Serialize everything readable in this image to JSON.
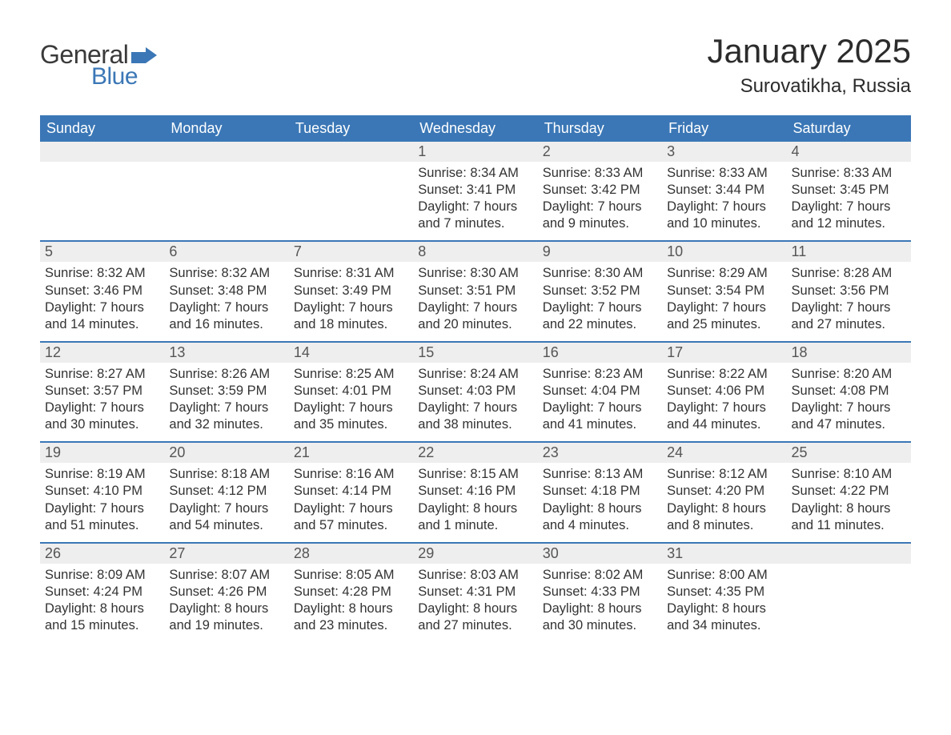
{
  "logo": {
    "word1": "General",
    "word2": "Blue"
  },
  "title": "January 2025",
  "location": "Surovatikha, Russia",
  "colors": {
    "brand_blue": "#3b77b6",
    "header_text": "#ffffff",
    "daynum_bg": "#eeeeee",
    "body_text": "#333333",
    "page_bg": "#ffffff"
  },
  "weekday_headers": [
    "Sunday",
    "Monday",
    "Tuesday",
    "Wednesday",
    "Thursday",
    "Friday",
    "Saturday"
  ],
  "weeks": [
    [
      null,
      null,
      null,
      {
        "n": "1",
        "sunrise": "Sunrise: 8:34 AM",
        "sunset": "Sunset: 3:41 PM",
        "d1": "Daylight: 7 hours",
        "d2": "and 7 minutes."
      },
      {
        "n": "2",
        "sunrise": "Sunrise: 8:33 AM",
        "sunset": "Sunset: 3:42 PM",
        "d1": "Daylight: 7 hours",
        "d2": "and 9 minutes."
      },
      {
        "n": "3",
        "sunrise": "Sunrise: 8:33 AM",
        "sunset": "Sunset: 3:44 PM",
        "d1": "Daylight: 7 hours",
        "d2": "and 10 minutes."
      },
      {
        "n": "4",
        "sunrise": "Sunrise: 8:33 AM",
        "sunset": "Sunset: 3:45 PM",
        "d1": "Daylight: 7 hours",
        "d2": "and 12 minutes."
      }
    ],
    [
      {
        "n": "5",
        "sunrise": "Sunrise: 8:32 AM",
        "sunset": "Sunset: 3:46 PM",
        "d1": "Daylight: 7 hours",
        "d2": "and 14 minutes."
      },
      {
        "n": "6",
        "sunrise": "Sunrise: 8:32 AM",
        "sunset": "Sunset: 3:48 PM",
        "d1": "Daylight: 7 hours",
        "d2": "and 16 minutes."
      },
      {
        "n": "7",
        "sunrise": "Sunrise: 8:31 AM",
        "sunset": "Sunset: 3:49 PM",
        "d1": "Daylight: 7 hours",
        "d2": "and 18 minutes."
      },
      {
        "n": "8",
        "sunrise": "Sunrise: 8:30 AM",
        "sunset": "Sunset: 3:51 PM",
        "d1": "Daylight: 7 hours",
        "d2": "and 20 minutes."
      },
      {
        "n": "9",
        "sunrise": "Sunrise: 8:30 AM",
        "sunset": "Sunset: 3:52 PM",
        "d1": "Daylight: 7 hours",
        "d2": "and 22 minutes."
      },
      {
        "n": "10",
        "sunrise": "Sunrise: 8:29 AM",
        "sunset": "Sunset: 3:54 PM",
        "d1": "Daylight: 7 hours",
        "d2": "and 25 minutes."
      },
      {
        "n": "11",
        "sunrise": "Sunrise: 8:28 AM",
        "sunset": "Sunset: 3:56 PM",
        "d1": "Daylight: 7 hours",
        "d2": "and 27 minutes."
      }
    ],
    [
      {
        "n": "12",
        "sunrise": "Sunrise: 8:27 AM",
        "sunset": "Sunset: 3:57 PM",
        "d1": "Daylight: 7 hours",
        "d2": "and 30 minutes."
      },
      {
        "n": "13",
        "sunrise": "Sunrise: 8:26 AM",
        "sunset": "Sunset: 3:59 PM",
        "d1": "Daylight: 7 hours",
        "d2": "and 32 minutes."
      },
      {
        "n": "14",
        "sunrise": "Sunrise: 8:25 AM",
        "sunset": "Sunset: 4:01 PM",
        "d1": "Daylight: 7 hours",
        "d2": "and 35 minutes."
      },
      {
        "n": "15",
        "sunrise": "Sunrise: 8:24 AM",
        "sunset": "Sunset: 4:03 PM",
        "d1": "Daylight: 7 hours",
        "d2": "and 38 minutes."
      },
      {
        "n": "16",
        "sunrise": "Sunrise: 8:23 AM",
        "sunset": "Sunset: 4:04 PM",
        "d1": "Daylight: 7 hours",
        "d2": "and 41 minutes."
      },
      {
        "n": "17",
        "sunrise": "Sunrise: 8:22 AM",
        "sunset": "Sunset: 4:06 PM",
        "d1": "Daylight: 7 hours",
        "d2": "and 44 minutes."
      },
      {
        "n": "18",
        "sunrise": "Sunrise: 8:20 AM",
        "sunset": "Sunset: 4:08 PM",
        "d1": "Daylight: 7 hours",
        "d2": "and 47 minutes."
      }
    ],
    [
      {
        "n": "19",
        "sunrise": "Sunrise: 8:19 AM",
        "sunset": "Sunset: 4:10 PM",
        "d1": "Daylight: 7 hours",
        "d2": "and 51 minutes."
      },
      {
        "n": "20",
        "sunrise": "Sunrise: 8:18 AM",
        "sunset": "Sunset: 4:12 PM",
        "d1": "Daylight: 7 hours",
        "d2": "and 54 minutes."
      },
      {
        "n": "21",
        "sunrise": "Sunrise: 8:16 AM",
        "sunset": "Sunset: 4:14 PM",
        "d1": "Daylight: 7 hours",
        "d2": "and 57 minutes."
      },
      {
        "n": "22",
        "sunrise": "Sunrise: 8:15 AM",
        "sunset": "Sunset: 4:16 PM",
        "d1": "Daylight: 8 hours",
        "d2": "and 1 minute."
      },
      {
        "n": "23",
        "sunrise": "Sunrise: 8:13 AM",
        "sunset": "Sunset: 4:18 PM",
        "d1": "Daylight: 8 hours",
        "d2": "and 4 minutes."
      },
      {
        "n": "24",
        "sunrise": "Sunrise: 8:12 AM",
        "sunset": "Sunset: 4:20 PM",
        "d1": "Daylight: 8 hours",
        "d2": "and 8 minutes."
      },
      {
        "n": "25",
        "sunrise": "Sunrise: 8:10 AM",
        "sunset": "Sunset: 4:22 PM",
        "d1": "Daylight: 8 hours",
        "d2": "and 11 minutes."
      }
    ],
    [
      {
        "n": "26",
        "sunrise": "Sunrise: 8:09 AM",
        "sunset": "Sunset: 4:24 PM",
        "d1": "Daylight: 8 hours",
        "d2": "and 15 minutes."
      },
      {
        "n": "27",
        "sunrise": "Sunrise: 8:07 AM",
        "sunset": "Sunset: 4:26 PM",
        "d1": "Daylight: 8 hours",
        "d2": "and 19 minutes."
      },
      {
        "n": "28",
        "sunrise": "Sunrise: 8:05 AM",
        "sunset": "Sunset: 4:28 PM",
        "d1": "Daylight: 8 hours",
        "d2": "and 23 minutes."
      },
      {
        "n": "29",
        "sunrise": "Sunrise: 8:03 AM",
        "sunset": "Sunset: 4:31 PM",
        "d1": "Daylight: 8 hours",
        "d2": "and 27 minutes."
      },
      {
        "n": "30",
        "sunrise": "Sunrise: 8:02 AM",
        "sunset": "Sunset: 4:33 PM",
        "d1": "Daylight: 8 hours",
        "d2": "and 30 minutes."
      },
      {
        "n": "31",
        "sunrise": "Sunrise: 8:00 AM",
        "sunset": "Sunset: 4:35 PM",
        "d1": "Daylight: 8 hours",
        "d2": "and 34 minutes."
      },
      null
    ]
  ]
}
